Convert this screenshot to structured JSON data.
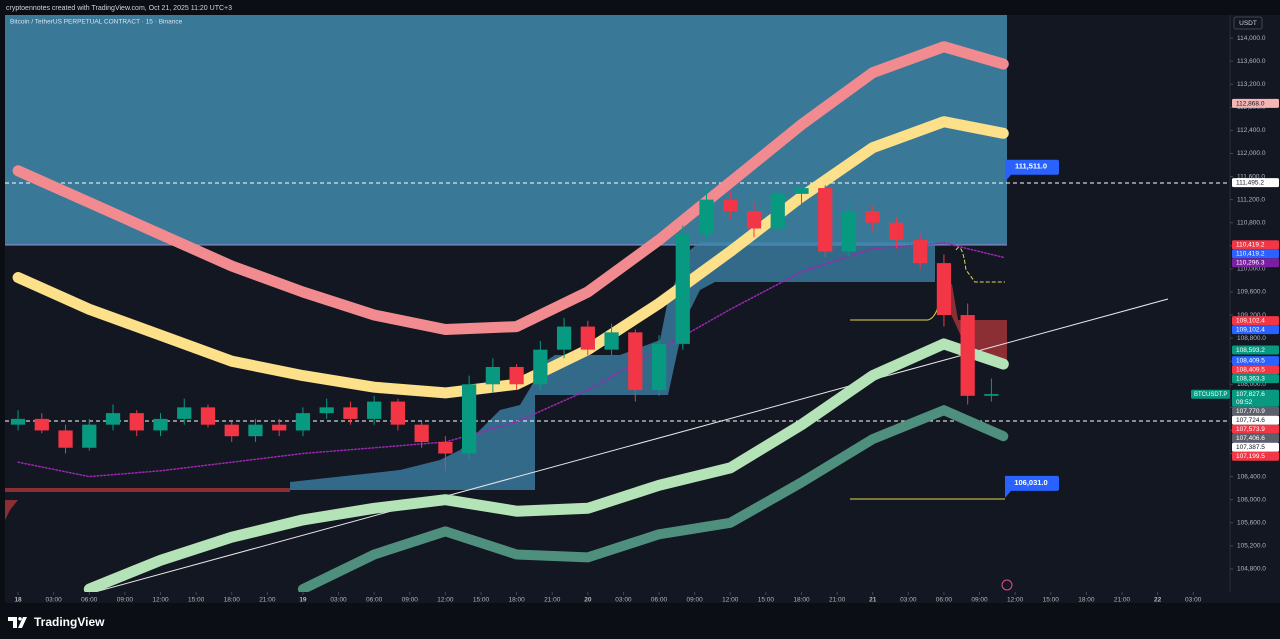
{
  "chart_data": {
    "type": "candlestick",
    "header": "cryptoennotes created with TradingView.com, Oct 21, 2025 11:20 UTC+3",
    "title": "Bitcoin / TetherUS PERPETUAL CONTRACT · 15 · Binance",
    "currency": "USDT",
    "brand": "TradingView",
    "up_color": "#089981",
    "down_color": "#f23645",
    "x": [
      0,
      2,
      4,
      6,
      8,
      10,
      12,
      14,
      16,
      18,
      20,
      22,
      24,
      26,
      28,
      30,
      32,
      34,
      36,
      38,
      40,
      42,
      44,
      46,
      48,
      50,
      52,
      54,
      56,
      58,
      60,
      62,
      64,
      66,
      68,
      70,
      72,
      74,
      76,
      78,
      80,
      82
    ],
    "open": [
      107300,
      107400,
      107200,
      106900,
      107300,
      107500,
      107200,
      107400,
      107600,
      107300,
      107100,
      107300,
      107200,
      107500,
      107600,
      107400,
      107700,
      107300,
      107000,
      106800,
      108000,
      108300,
      108000,
      108600,
      109000,
      108600,
      108900,
      107900,
      108700,
      110600,
      111200,
      111000,
      110700,
      111300,
      111400,
      110300,
      111000,
      110800,
      110500,
      110100,
      109200,
      107800
    ],
    "high": [
      107550,
      107500,
      107300,
      107400,
      107650,
      107550,
      107500,
      107750,
      107650,
      107350,
      107400,
      107400,
      107600,
      107750,
      107700,
      107800,
      107750,
      107350,
      107100,
      108150,
      108450,
      108350,
      108750,
      109150,
      109100,
      109050,
      108950,
      108850,
      110750,
      111400,
      111350,
      111150,
      111450,
      111600,
      111450,
      111150,
      111100,
      110900,
      110600,
      110250,
      109400,
      108100
    ],
    "low": [
      107200,
      107150,
      106800,
      106850,
      107200,
      107100,
      107100,
      107300,
      107250,
      107000,
      107000,
      107100,
      107100,
      107400,
      107300,
      107300,
      107200,
      106900,
      106500,
      106700,
      107850,
      107900,
      107900,
      108450,
      108500,
      108500,
      107700,
      107800,
      108600,
      110500,
      110850,
      110550,
      110600,
      111100,
      110200,
      110200,
      110650,
      110350,
      110000,
      109000,
      107650,
      107700
    ],
    "close": [
      107400,
      107200,
      106900,
      107300,
      107500,
      107200,
      107400,
      107600,
      107300,
      107100,
      107300,
      107200,
      107500,
      107600,
      107400,
      107700,
      107300,
      107000,
      106800,
      108000,
      108300,
      108000,
      108600,
      109000,
      108600,
      108900,
      107900,
      108700,
      110600,
      111200,
      111000,
      110700,
      111300,
      111400,
      110300,
      111000,
      110800,
      110500,
      110100,
      109200,
      107800,
      107830
    ],
    "overlays": [
      {
        "color": "#f28b8f",
        "width": 11,
        "dash": false,
        "x": [
          0,
          6,
          12,
          18,
          24,
          30,
          36,
          42,
          48,
          54,
          60,
          66,
          72,
          78,
          83
        ],
        "values": [
          111700,
          111150,
          110600,
          110050,
          109600,
          109200,
          108950,
          109000,
          109600,
          110500,
          111500,
          112500,
          113400,
          113850,
          113550
        ]
      },
      {
        "color": "#fde08a",
        "width": 11,
        "dash": false,
        "x": [
          0,
          6,
          12,
          18,
          24,
          30,
          36,
          42,
          48,
          54,
          60,
          66,
          72,
          78,
          83
        ],
        "values": [
          109850,
          109300,
          108850,
          108400,
          108150,
          107950,
          107850,
          108000,
          108600,
          109400,
          110300,
          111250,
          112100,
          112550,
          112350
        ]
      },
      {
        "color": "#b4e3b8",
        "width": 11,
        "dash": false,
        "x": [
          0,
          6,
          12,
          18,
          24,
          30,
          36,
          42,
          48,
          54,
          60,
          66,
          72,
          78,
          83
        ],
        "values": [
          null,
          104450,
          104950,
          105350,
          105650,
          105850,
          106000,
          105800,
          105850,
          106250,
          106550,
          107300,
          108150,
          108700,
          108350
        ]
      },
      {
        "color": "#4f8f7e",
        "width": 10,
        "dash": false,
        "x": [
          0,
          6,
          12,
          18,
          24,
          30,
          36,
          42,
          48,
          54,
          60,
          66,
          72,
          78,
          83
        ],
        "values": [
          null,
          null,
          null,
          null,
          104450,
          105050,
          105450,
          105050,
          105000,
          105400,
          105600,
          106300,
          107050,
          107550,
          107100
        ]
      },
      {
        "color": "#9c27b0",
        "width": 1.5,
        "dash": true,
        "x": [
          0,
          6,
          12,
          18,
          24,
          30,
          36,
          42,
          48,
          54,
          60,
          66,
          72,
          78,
          83
        ],
        "values": [
          106650,
          106400,
          106500,
          106650,
          106800,
          106900,
          107000,
          107350,
          107900,
          108600,
          109300,
          109950,
          110350,
          110450,
          110200
        ]
      }
    ],
    "xlim": [
      -1.1,
      102.1
    ],
    "ylim": [
      104400,
      114400
    ],
    "xticks": [
      {
        "value": 0,
        "label": "18"
      },
      {
        "value": 3,
        "label": "03:00"
      },
      {
        "value": 6,
        "label": "06:00"
      },
      {
        "value": 9,
        "label": "09:00"
      },
      {
        "value": 12,
        "label": "12:00"
      },
      {
        "value": 15,
        "label": "15:00"
      },
      {
        "value": 18,
        "label": "18:00"
      },
      {
        "value": 21,
        "label": "21:00"
      },
      {
        "value": 24,
        "label": "19"
      },
      {
        "value": 27,
        "label": "03:00"
      },
      {
        "value": 30,
        "label": "06:00"
      },
      {
        "value": 33,
        "label": "09:00"
      },
      {
        "value": 36,
        "label": "12:00"
      },
      {
        "value": 39,
        "label": "15:00"
      },
      {
        "value": 42,
        "label": "18:00"
      },
      {
        "value": 45,
        "label": "21:00"
      },
      {
        "value": 48,
        "label": "20"
      },
      {
        "value": 51,
        "label": "03:00"
      },
      {
        "value": 54,
        "label": "06:00"
      },
      {
        "value": 57,
        "label": "09:00"
      },
      {
        "value": 60,
        "label": "12:00"
      },
      {
        "value": 63,
        "label": "15:00"
      },
      {
        "value": 66,
        "label": "18:00"
      },
      {
        "value": 69,
        "label": "21:00"
      },
      {
        "value": 72,
        "label": "21"
      },
      {
        "value": 75,
        "label": "03:00"
      },
      {
        "value": 78,
        "label": "06:00"
      },
      {
        "value": 81,
        "label": "09:00"
      },
      {
        "value": 84,
        "label": "12:00"
      },
      {
        "value": 87,
        "label": "15:00"
      },
      {
        "value": 90,
        "label": "18:00"
      },
      {
        "value": 93,
        "label": "21:00"
      },
      {
        "value": 96,
        "label": "22"
      },
      {
        "value": 99,
        "label": "03:00"
      }
    ],
    "yticks": [
      {
        "value": 104800,
        "label": "104,800.0"
      },
      {
        "value": 105200,
        "label": "105,200.0"
      },
      {
        "value": 105600,
        "label": "105,600.0"
      },
      {
        "value": 106000,
        "label": "106,000.0"
      },
      {
        "value": 106400,
        "label": "106,400.0"
      },
      {
        "value": 106800,
        "label": "106,800.0"
      },
      {
        "value": 107200,
        "label": "107,200.0"
      },
      {
        "value": 107600,
        "label": "107,600.0"
      },
      {
        "value": 108000,
        "label": "108,000.0"
      },
      {
        "value": 108400,
        "label": "108,400.0"
      },
      {
        "value": 108800,
        "label": "108,800.0"
      },
      {
        "value": 109200,
        "label": "109,200.0"
      },
      {
        "value": 109600,
        "label": "109,600.0"
      },
      {
        "value": 110000,
        "label": "110,000.0"
      },
      {
        "value": 110400,
        "label": "110,400.0"
      },
      {
        "value": 110800,
        "label": "110,800.0"
      },
      {
        "value": 111200,
        "label": "111,200.0"
      },
      {
        "value": 111600,
        "label": "111,600.0"
      },
      {
        "value": 112000,
        "label": "112,000.0"
      },
      {
        "value": 112400,
        "label": "112,400.0"
      },
      {
        "value": 112800,
        "label": "112,800.0"
      },
      {
        "value": 113200,
        "label": "113,200.0"
      },
      {
        "value": 113600,
        "label": "113,600.0"
      },
      {
        "value": 114000,
        "label": "114,000.0"
      }
    ],
    "price_tags": [
      {
        "value": 112868.0,
        "label": "112,868.0",
        "bg": "#f5b5b5",
        "fg": "#131722"
      },
      {
        "value": 111495.2,
        "label": "111,495.2",
        "bg": "#ffffff",
        "fg": "#131722"
      },
      {
        "value": 110419.2,
        "label": "110,419.2",
        "bg": "#f23645",
        "fg": "#ffffff"
      },
      {
        "value": 110419.2,
        "label": "110,419.2",
        "bg": "#2962ff",
        "fg": "#ffffff"
      },
      {
        "value": 110296.3,
        "label": "110,296.3",
        "bg": "#7b1fa2",
        "fg": "#ffffff"
      },
      {
        "value": 109102.4,
        "label": "109,102.4",
        "bg": "#f23645",
        "fg": "#ffffff"
      },
      {
        "value": 109102.4,
        "label": "109,102.4",
        "bg": "#2962ff",
        "fg": "#ffffff"
      },
      {
        "value": 108593.2,
        "label": "108,593.2",
        "bg": "#089981",
        "fg": "#ffffff"
      },
      {
        "value": 108409.5,
        "label": "108,409.5",
        "bg": "#2962ff",
        "fg": "#ffffff"
      },
      {
        "value": 108409.5,
        "label": "108,409.5",
        "bg": "#f23645",
        "fg": "#ffffff"
      },
      {
        "value": 108363.3,
        "label": "108,363.3",
        "bg": "#089981",
        "fg": "#ffffff"
      },
      {
        "value": 107827.6,
        "label": "107,827.6",
        "bg": "#089981",
        "fg": "#ffffff",
        "countdown": "09:52",
        "symbol": "BTCUSDT.P"
      },
      {
        "value": 107770.9,
        "label": "107,770.9",
        "bg": "#5d606b",
        "fg": "#ffffff"
      },
      {
        "value": 107724.6,
        "label": "107,724.6",
        "bg": "#ffffff",
        "fg": "#131722"
      },
      {
        "value": 107573.9,
        "label": "107,573.9",
        "bg": "#f23645",
        "fg": "#ffffff"
      },
      {
        "value": 107406.6,
        "label": "107,406.6",
        "bg": "#5d606b",
        "fg": "#ffffff"
      },
      {
        "value": 107387.5,
        "label": "107,387.5",
        "bg": "#ffffff",
        "fg": "#131722"
      },
      {
        "value": 107199.5,
        "label": "107,199.5",
        "bg": "#f23645",
        "fg": "#ffffff"
      }
    ],
    "callouts": [
      {
        "value": 111511.0,
        "label": "111,511.0"
      },
      {
        "value": 106031.0,
        "label": "106,031.0"
      }
    ]
  }
}
